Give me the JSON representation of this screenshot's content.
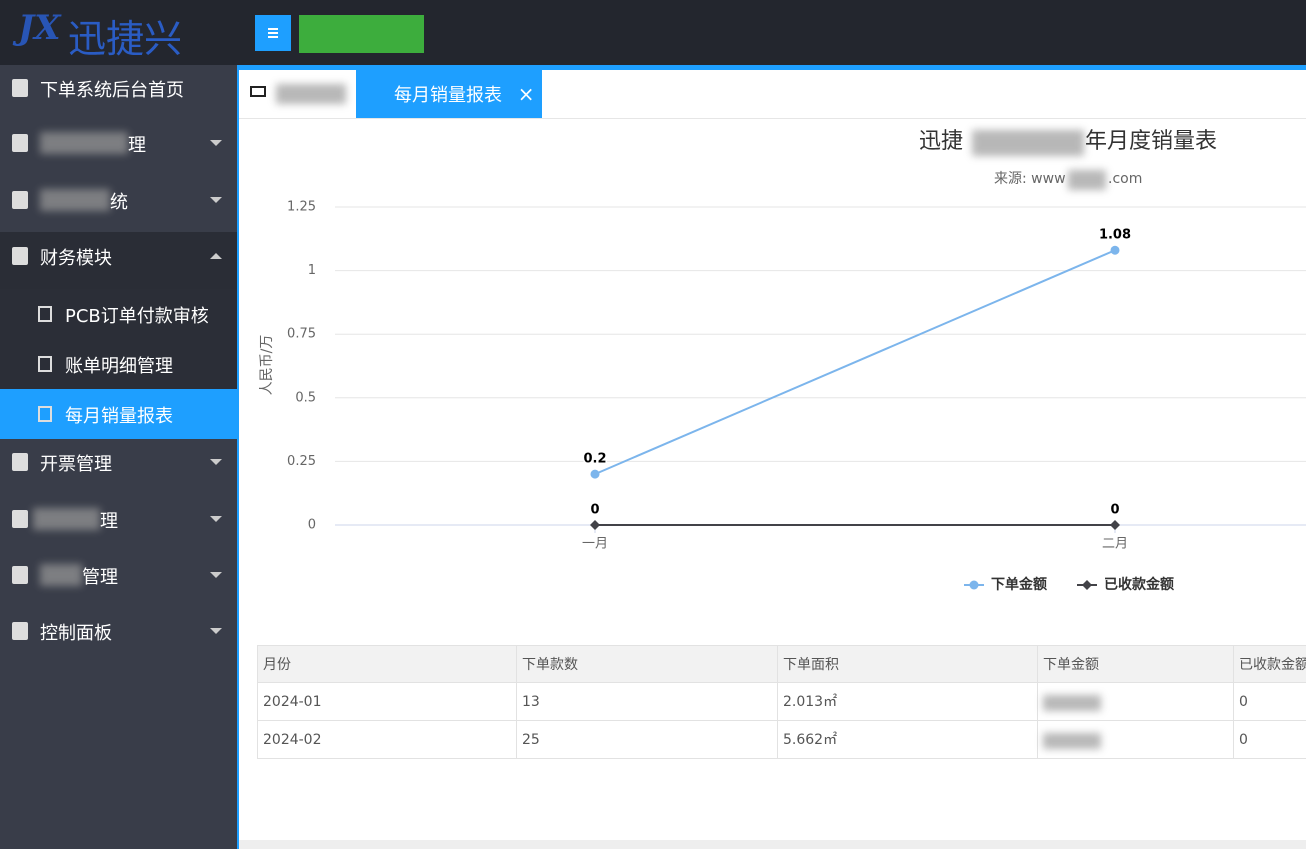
{
  "header": {
    "logo_mark": "JX",
    "logo": "迅捷兴"
  },
  "sidebar": {
    "items": [
      {
        "label": "下单系统后台首页"
      },
      {
        "label": "理"
      },
      {
        "label": "统"
      },
      {
        "label": "财务模块",
        "children": [
          "PCB订单付款审核",
          "账单明细管理",
          "每月销量报表"
        ]
      },
      {
        "label": "开票管理"
      },
      {
        "label": "理"
      },
      {
        "label": "管理"
      },
      {
        "label": "控制面板"
      }
    ]
  },
  "tabs": {
    "active": "每月销量报表",
    "close": "×"
  },
  "chart_data": {
    "type": "line",
    "title_parts": [
      "迅捷",
      "年月度销量表"
    ],
    "subtitle_parts": [
      "来源: www",
      ".com"
    ],
    "y_label": "人民币/万",
    "categories": [
      "一月",
      "二月"
    ],
    "series": [
      {
        "name": "下单金额",
        "color": "#7cb5ec",
        "values": [
          0.2,
          1.08
        ]
      },
      {
        "name": "已收款金额",
        "color": "#434348",
        "values": [
          0,
          0
        ]
      }
    ],
    "ylim": [
      0,
      1.25
    ],
    "yticks": [
      0,
      0.25,
      0.5,
      0.75,
      1,
      1.25
    ],
    "grid": true
  },
  "table": {
    "headers": [
      "月份",
      "下单款数",
      "下单面积",
      "下单金额",
      "已收款金额"
    ],
    "rows": [
      [
        "2024-01",
        13,
        "2.013㎡",
        null,
        0
      ],
      [
        "2024-02",
        25,
        "5.662㎡",
        null,
        0
      ]
    ]
  }
}
